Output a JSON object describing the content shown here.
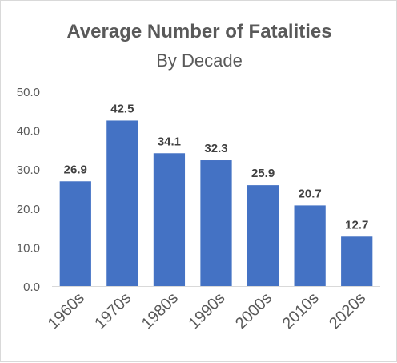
{
  "chart_data": {
    "type": "bar",
    "title": "Average Number of Fatalities",
    "subtitle": "By Decade",
    "categories": [
      "1960s",
      "1970s",
      "1980s",
      "1990s",
      "2000s",
      "2010s",
      "2020s"
    ],
    "values": [
      26.9,
      42.5,
      34.1,
      32.3,
      25.9,
      20.7,
      12.7
    ],
    "value_labels": [
      "26.9",
      "42.5",
      "34.1",
      "32.3",
      "25.9",
      "20.7",
      "12.7"
    ],
    "y_ticks": [
      "0.0",
      "10.0",
      "20.0",
      "30.0",
      "40.0",
      "50.0"
    ],
    "ylim": [
      0,
      50
    ],
    "grid": false,
    "legend": "none",
    "bar_color": "#4472c4"
  }
}
